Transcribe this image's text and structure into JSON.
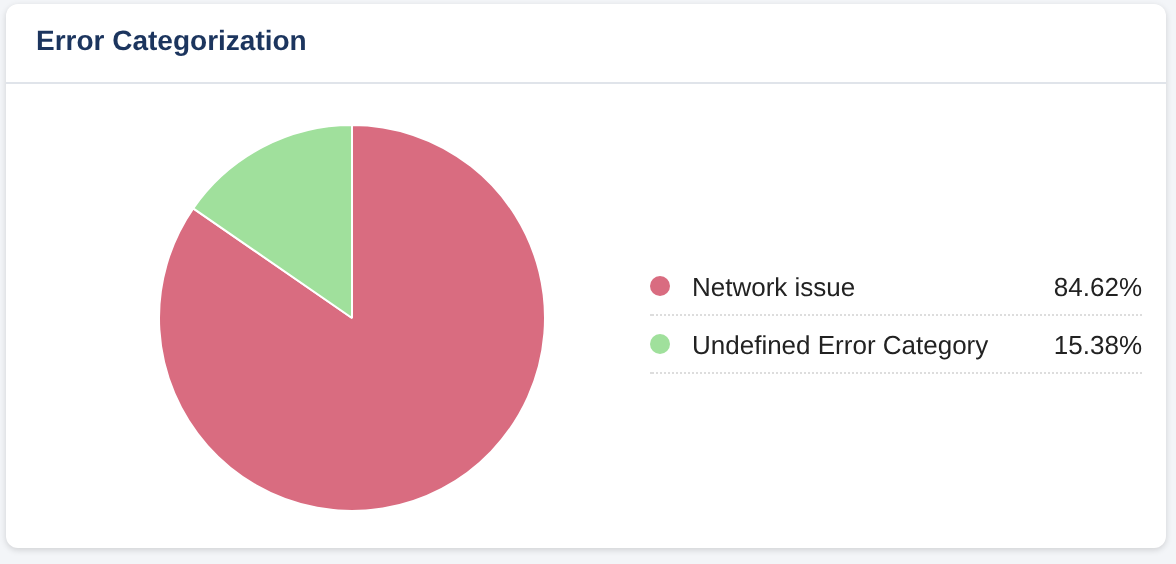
{
  "chart_data": {
    "type": "pie",
    "title": "Error Categorization",
    "categories": [
      "Network issue",
      "Undefined Error Category"
    ],
    "values": [
      84.62,
      15.38
    ],
    "colors": [
      "#d96c80",
      "#a0e09c"
    ],
    "value_labels": [
      "84.62%",
      "15.38%"
    ],
    "legend": "right"
  }
}
